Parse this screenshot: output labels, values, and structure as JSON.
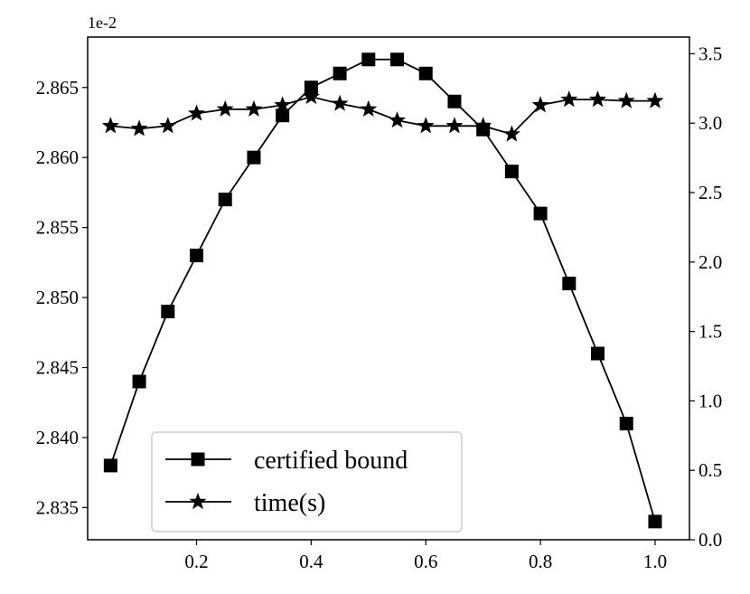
{
  "chart_data": {
    "type": "line",
    "title": "",
    "xlabel": "",
    "x": [
      0.05,
      0.1,
      0.15,
      0.2,
      0.25,
      0.3,
      0.35,
      0.4,
      0.45,
      0.5,
      0.55,
      0.6,
      0.65,
      0.7,
      0.75,
      0.8,
      0.85,
      0.9,
      0.95,
      1.0
    ],
    "xlim": [
      0.01,
      1.06
    ],
    "x_ticks": [
      0.2,
      0.4,
      0.6,
      0.8,
      1.0
    ],
    "x_tick_labels": [
      "0.2",
      "0.4",
      "0.6",
      "0.8",
      "1.0"
    ],
    "y_left": {
      "label": "",
      "offset_text": "1e-2",
      "lim": [
        2.8327,
        2.8686
      ],
      "ticks": [
        2.835,
        2.84,
        2.845,
        2.85,
        2.855,
        2.86,
        2.865
      ],
      "tick_labels": [
        "2.835",
        "2.840",
        "2.845",
        "2.850",
        "2.855",
        "2.860",
        "2.865"
      ]
    },
    "y_right": {
      "label": "",
      "lim": [
        0.0,
        3.62
      ],
      "ticks": [
        0.0,
        0.5,
        1.0,
        1.5,
        2.0,
        2.5,
        3.0,
        3.5
      ],
      "tick_labels": [
        "0.0",
        "0.5",
        "1.0",
        "1.5",
        "2.0",
        "2.5",
        "3.0",
        "3.5"
      ]
    },
    "series": [
      {
        "name": "certified bound",
        "axis": "left",
        "marker": "square",
        "color": "#000000",
        "values": [
          2.838,
          2.844,
          2.849,
          2.853,
          2.857,
          2.86,
          2.863,
          2.865,
          2.866,
          2.867,
          2.867,
          2.866,
          2.864,
          2.862,
          2.859,
          2.856,
          2.851,
          2.846,
          2.841,
          2.834
        ]
      },
      {
        "name": "time(s)",
        "axis": "right",
        "marker": "star",
        "color": "#000000",
        "values": [
          2.98,
          2.96,
          2.98,
          3.07,
          3.1,
          3.1,
          3.13,
          3.19,
          3.14,
          3.1,
          3.02,
          2.98,
          2.98,
          2.98,
          2.92,
          3.13,
          3.17,
          3.17,
          3.16,
          3.16
        ]
      }
    ],
    "legend_position": "lower-left",
    "grid": false
  }
}
